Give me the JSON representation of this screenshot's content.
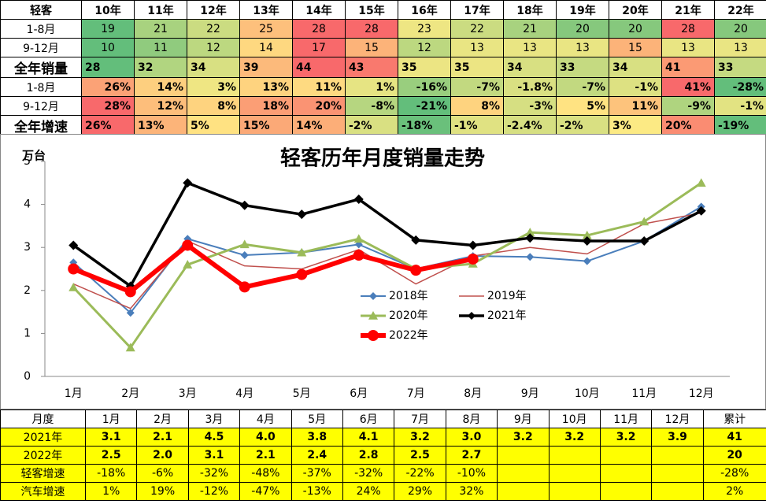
{
  "top_table": {
    "header": [
      "轻客",
      "10年",
      "11年",
      "12年",
      "13年",
      "14年",
      "15年",
      "16年",
      "17年",
      "18年",
      "19年",
      "20年",
      "21年",
      "22年"
    ],
    "rows": [
      [
        "1-8月",
        "19",
        "21",
        "22",
        "25",
        "28",
        "28",
        "23",
        "22",
        "21",
        "20",
        "20",
        "28",
        "20"
      ],
      [
        "9-12月",
        "10",
        "11",
        "12",
        "14",
        "17",
        "15",
        "12",
        "13",
        "13",
        "13",
        "15",
        "13",
        "13"
      ],
      [
        "全年销量",
        "28",
        "32",
        "34",
        "39",
        "44",
        "43",
        "35",
        "35",
        "34",
        "33",
        "34",
        "41",
        "33"
      ],
      [
        "1-8月",
        "26%",
        "14%",
        "3%",
        "13%",
        "11%",
        "1%",
        "-16%",
        "-7%",
        "-1.8%",
        "-7%",
        "-1%",
        "41%",
        "-28%"
      ],
      [
        "9-12月",
        "28%",
        "12%",
        "8%",
        "18%",
        "20%",
        "-8%",
        "-21%",
        "8%",
        "-3%",
        "5%",
        "11%",
        "-9%",
        "-1%"
      ],
      [
        "全年增速",
        "26%",
        "13%",
        "5%",
        "15%",
        "14%",
        "-2%",
        "-18%",
        "-1%",
        "-2.4%",
        "-2%",
        "3%",
        "20%",
        "-19%"
      ]
    ]
  },
  "chart_data": {
    "type": "line",
    "title": "轻客历年月度销量走势",
    "y_label": "万台",
    "categories": [
      "1月",
      "2月",
      "3月",
      "4月",
      "5月",
      "6月",
      "7月",
      "8月",
      "9月",
      "10月",
      "11月",
      "12月"
    ],
    "ylim": [
      0,
      5
    ],
    "yticks": [
      0,
      1,
      2,
      3,
      4,
      5
    ],
    "series": [
      {
        "name": "2018年",
        "color": "#4a7ebb",
        "marker": "diamond",
        "width": 2,
        "values": [
          2.65,
          1.48,
          3.2,
          2.82,
          2.88,
          3.07,
          2.5,
          2.8,
          2.78,
          2.68,
          3.15,
          3.95
        ]
      },
      {
        "name": "2019年",
        "color": "#c0504d",
        "marker": "none",
        "width": 1.5,
        "values": [
          2.15,
          1.58,
          3.15,
          2.57,
          2.5,
          2.95,
          2.15,
          2.8,
          3.0,
          2.85,
          3.55,
          3.8
        ]
      },
      {
        "name": "2020年",
        "color": "#9bbb59",
        "marker": "triangle",
        "width": 3,
        "values": [
          2.07,
          0.67,
          2.6,
          3.07,
          2.88,
          3.2,
          2.5,
          2.62,
          3.35,
          3.28,
          3.6,
          4.5
        ]
      },
      {
        "name": "2021年",
        "color": "#000000",
        "marker": "diamond",
        "width": 3.5,
        "values": [
          3.05,
          2.1,
          4.5,
          3.98,
          3.77,
          4.12,
          3.17,
          3.05,
          3.22,
          3.15,
          3.15,
          3.85
        ]
      },
      {
        "name": "2022年",
        "color": "#ff0000",
        "marker": "circle",
        "width": 6,
        "values": [
          2.5,
          1.97,
          3.05,
          2.08,
          2.37,
          2.82,
          2.47,
          2.73,
          null,
          null,
          null,
          null
        ]
      }
    ]
  },
  "bottom_table": {
    "header": [
      "月度",
      "1月",
      "2月",
      "3月",
      "4月",
      "5月",
      "6月",
      "7月",
      "8月",
      "9月",
      "10月",
      "11月",
      "12月",
      "累计"
    ],
    "rows": [
      [
        "2021年",
        "3.1",
        "2.1",
        "4.5",
        "4.0",
        "3.8",
        "4.1",
        "3.2",
        "3.0",
        "3.2",
        "3.2",
        "3.2",
        "3.9",
        "41"
      ],
      [
        "2022年",
        "2.5",
        "2.0",
        "3.1",
        "2.1",
        "2.4",
        "2.8",
        "2.5",
        "2.7",
        null,
        null,
        null,
        null,
        "20"
      ],
      [
        "轻客增速",
        "-18%",
        "-6%",
        "-32%",
        "-48%",
        "-37%",
        "-32%",
        "-22%",
        "-10%",
        null,
        null,
        null,
        null,
        "-28%"
      ],
      [
        "汽车增速",
        "1%",
        "19%",
        "-12%",
        "-47%",
        "-13%",
        "24%",
        "29%",
        "32%",
        null,
        null,
        null,
        null,
        "2%"
      ]
    ]
  }
}
